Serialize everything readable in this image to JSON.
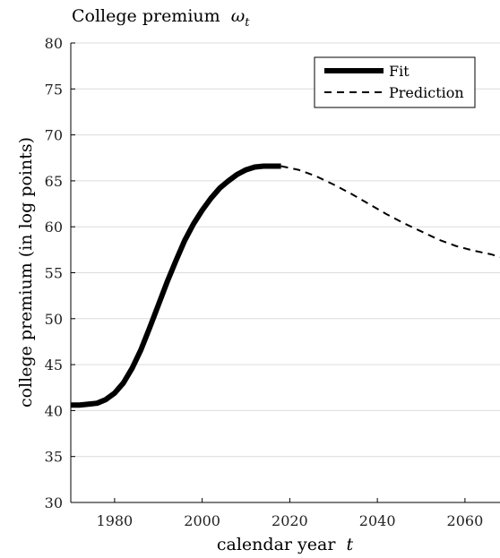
{
  "chart_data": {
    "type": "line",
    "title": "College premium",
    "title_symbol": "ω",
    "title_subscript": "t",
    "xlabel": "calendar year",
    "xlabel_symbol": "t",
    "ylabel": "college premium (in log points)",
    "xlim": [
      1970,
      2068
    ],
    "ylim": [
      30,
      80
    ],
    "x_ticks": [
      1980,
      2000,
      2020,
      2040,
      2060
    ],
    "y_ticks": [
      30,
      35,
      40,
      45,
      50,
      55,
      60,
      65,
      70,
      75,
      80
    ],
    "grid": "horizontal",
    "legend_position": "top-right",
    "series": [
      {
        "name": "Fit",
        "style": "solid-thick",
        "color": "#000000",
        "x": [
          1970,
          1972,
          1974,
          1976,
          1978,
          1980,
          1982,
          1984,
          1986,
          1988,
          1990,
          1992,
          1994,
          1996,
          1998,
          2000,
          2002,
          2004,
          2006,
          2008,
          2010,
          2012,
          2014,
          2016,
          2018
        ],
        "y": [
          40.6,
          40.6,
          40.7,
          40.8,
          41.2,
          41.9,
          43.0,
          44.6,
          46.6,
          49.0,
          51.5,
          54.0,
          56.3,
          58.5,
          60.3,
          61.8,
          63.1,
          64.2,
          65.0,
          65.7,
          66.2,
          66.5,
          66.6,
          66.6,
          66.6
        ]
      },
      {
        "name": "Prediction",
        "style": "dashed",
        "color": "#000000",
        "x": [
          2018,
          2022,
          2026,
          2030,
          2034,
          2038,
          2042,
          2046,
          2050,
          2054,
          2058,
          2062,
          2066,
          2068
        ],
        "y": [
          66.6,
          66.2,
          65.5,
          64.6,
          63.6,
          62.5,
          61.4,
          60.4,
          59.5,
          58.6,
          57.9,
          57.4,
          57.0,
          56.7
        ]
      }
    ]
  }
}
